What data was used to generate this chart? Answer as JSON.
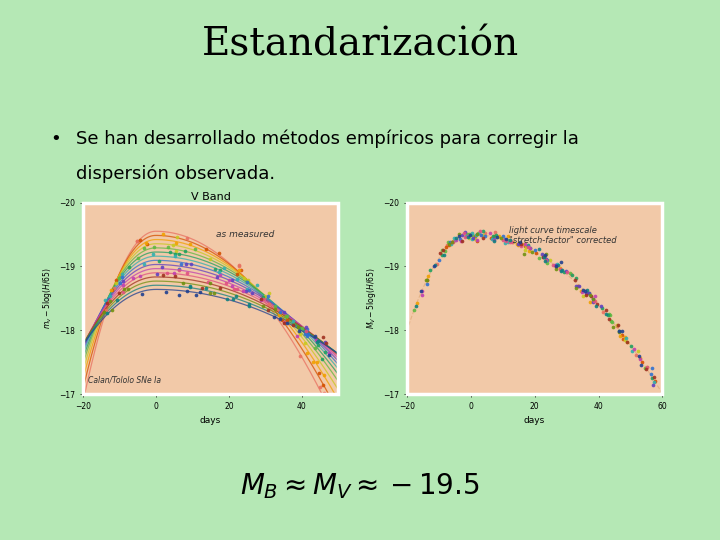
{
  "background_color": "#b5e8b5",
  "title": "Estandarización",
  "title_fontsize": 28,
  "title_font": "serif",
  "bullet_text_line1": "Se han desarrollado métodos empíricos para corregir la",
  "bullet_text_line2": "dispersión observada.",
  "bullet_fontsize": 13,
  "formula": "$M_B \\approx M_V \\approx -19.5$",
  "formula_fontsize": 20,
  "plot_bg": "#f2c9a8",
  "left_plot_title": "V Band",
  "left_plot_xlabel": "days",
  "left_plot_annotation": "as measured",
  "left_plot_annotation2": "Calan/Tololo SNe Ia",
  "right_plot_xlabel": "days",
  "right_plot_annotation": "light curve timescale\n\"stretch-factor\" corrected",
  "curve_colors": [
    "#e87060",
    "#d45000",
    "#f0a000",
    "#c8c820",
    "#60b840",
    "#20a060",
    "#30b0b0",
    "#3070d0",
    "#6040c0",
    "#c040b0",
    "#e05080",
    "#a03020",
    "#709010",
    "#108080",
    "#204090"
  ]
}
